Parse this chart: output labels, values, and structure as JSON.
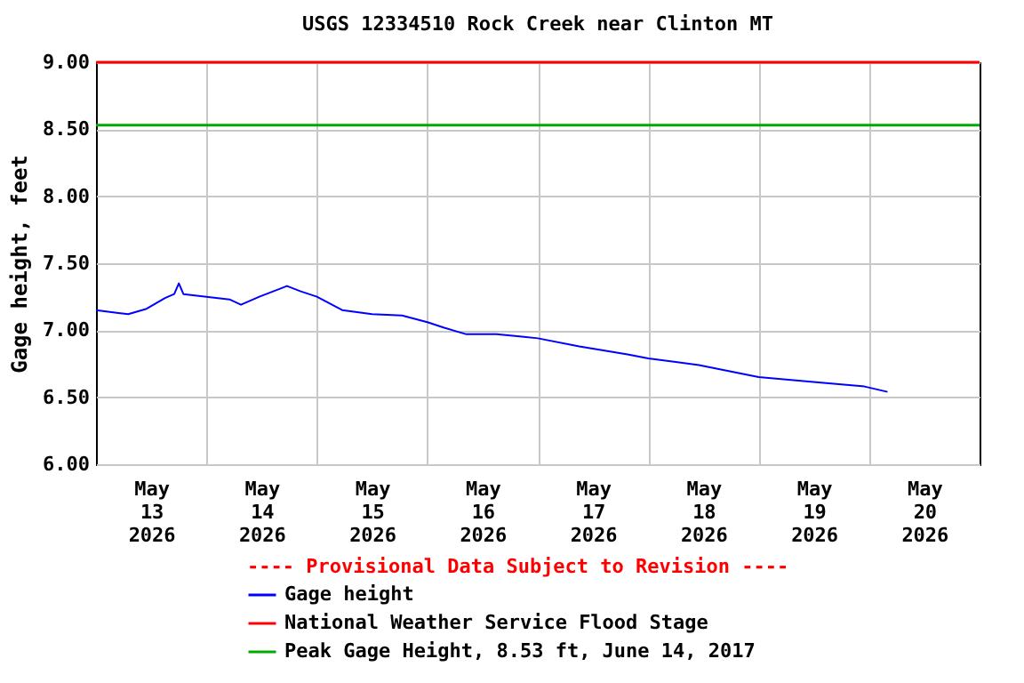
{
  "chart_data": {
    "type": "line",
    "title": "USGS 12334510 Rock Creek near Clinton MT",
    "ylabel": "Gage height, feet",
    "annotations": [
      "---- Provisional Data Subject to Revision ----"
    ],
    "series": [
      {
        "name": "Gage height",
        "color": "#0000ff",
        "x": [
          "2026-05-13T00:00",
          "2026-05-13T04:30",
          "2026-05-13T07:00",
          "2026-05-13T11:00",
          "2026-05-13T15:00",
          "2026-05-13T17:00",
          "2026-05-13T18:00",
          "2026-05-13T19:00",
          "2026-05-14T00:00",
          "2026-05-14T05:00",
          "2026-05-14T07:30",
          "2026-05-14T11:30",
          "2026-05-14T17:30",
          "2026-05-14T20:30",
          "2026-05-15T00:00",
          "2026-05-15T05:30",
          "2026-05-15T12:00",
          "2026-05-15T18:30",
          "2026-05-16T00:00",
          "2026-05-16T03:30",
          "2026-05-16T08:30",
          "2026-05-16T15:00",
          "2026-05-16T21:00",
          "2026-05-17T00:00",
          "2026-05-17T09:00",
          "2026-05-17T19:30",
          "2026-05-18T00:00",
          "2026-05-18T11:00",
          "2026-05-19T00:00",
          "2026-05-19T13:00",
          "2026-05-19T23:00",
          "2026-05-20T04:00"
        ],
        "values": [
          7.15,
          7.13,
          7.12,
          7.16,
          7.24,
          7.27,
          7.35,
          7.27,
          7.25,
          7.23,
          7.19,
          7.25,
          7.33,
          7.29,
          7.25,
          7.15,
          7.12,
          7.11,
          7.06,
          7.02,
          6.97,
          6.97,
          6.95,
          6.94,
          6.88,
          6.82,
          6.79,
          6.74,
          6.65,
          6.61,
          6.58,
          6.54
        ]
      }
    ],
    "ref_lines": [
      {
        "axis": "y",
        "value": 9.0,
        "label": "National Weather Service Flood Stage",
        "color": "#ff0000"
      },
      {
        "axis": "y",
        "value": 8.53,
        "label": "Peak Gage Height, 8.53 ft, June 14, 2017",
        "color": "#00aa00"
      }
    ],
    "xlim": [
      "2026-05-13T00:00",
      "2026-05-21T00:00"
    ],
    "xticks": [
      {
        "value": "2026-05-13T12:00",
        "label": "May 13 2026"
      },
      {
        "value": "2026-05-14T00:00",
        "label": null
      },
      {
        "value": "2026-05-14T12:00",
        "label": "May 14 2026"
      },
      {
        "value": "2026-05-15T00:00",
        "label": null
      },
      {
        "value": "2026-05-15T12:00",
        "label": "May 15 2026"
      },
      {
        "value": "2026-05-16T00:00",
        "label": null
      },
      {
        "value": "2026-05-16T12:00",
        "label": "May 16 2026"
      },
      {
        "value": "2026-05-17T00:00",
        "label": null
      },
      {
        "value": "2026-05-17T12:00",
        "label": "May 17 2026"
      },
      {
        "value": "2026-05-18T00:00",
        "label": null
      },
      {
        "value": "2026-05-18T12:00",
        "label": "May 18 2026"
      },
      {
        "value": "2026-05-19T00:00",
        "label": null
      },
      {
        "value": "2026-05-19T12:00",
        "label": "May 19 2026"
      },
      {
        "value": "2026-05-20T00:00",
        "label": null
      },
      {
        "value": "2026-05-20T12:00",
        "label": "May 20 2026"
      }
    ],
    "ylim": [
      6,
      9
    ],
    "yticks": [
      {
        "value": 6,
        "label": "6.00"
      },
      {
        "value": 6.5,
        "label": "6.50"
      },
      {
        "value": 7,
        "label": "7.00"
      },
      {
        "value": 7.5,
        "label": "7.50"
      },
      {
        "value": 8,
        "label": "8.00"
      },
      {
        "value": 8.5,
        "label": "8.50"
      },
      {
        "value": 9,
        "label": "9.00"
      }
    ],
    "grid": true,
    "legend": "bottom",
    "marker": "none",
    "line_style": "solid"
  }
}
